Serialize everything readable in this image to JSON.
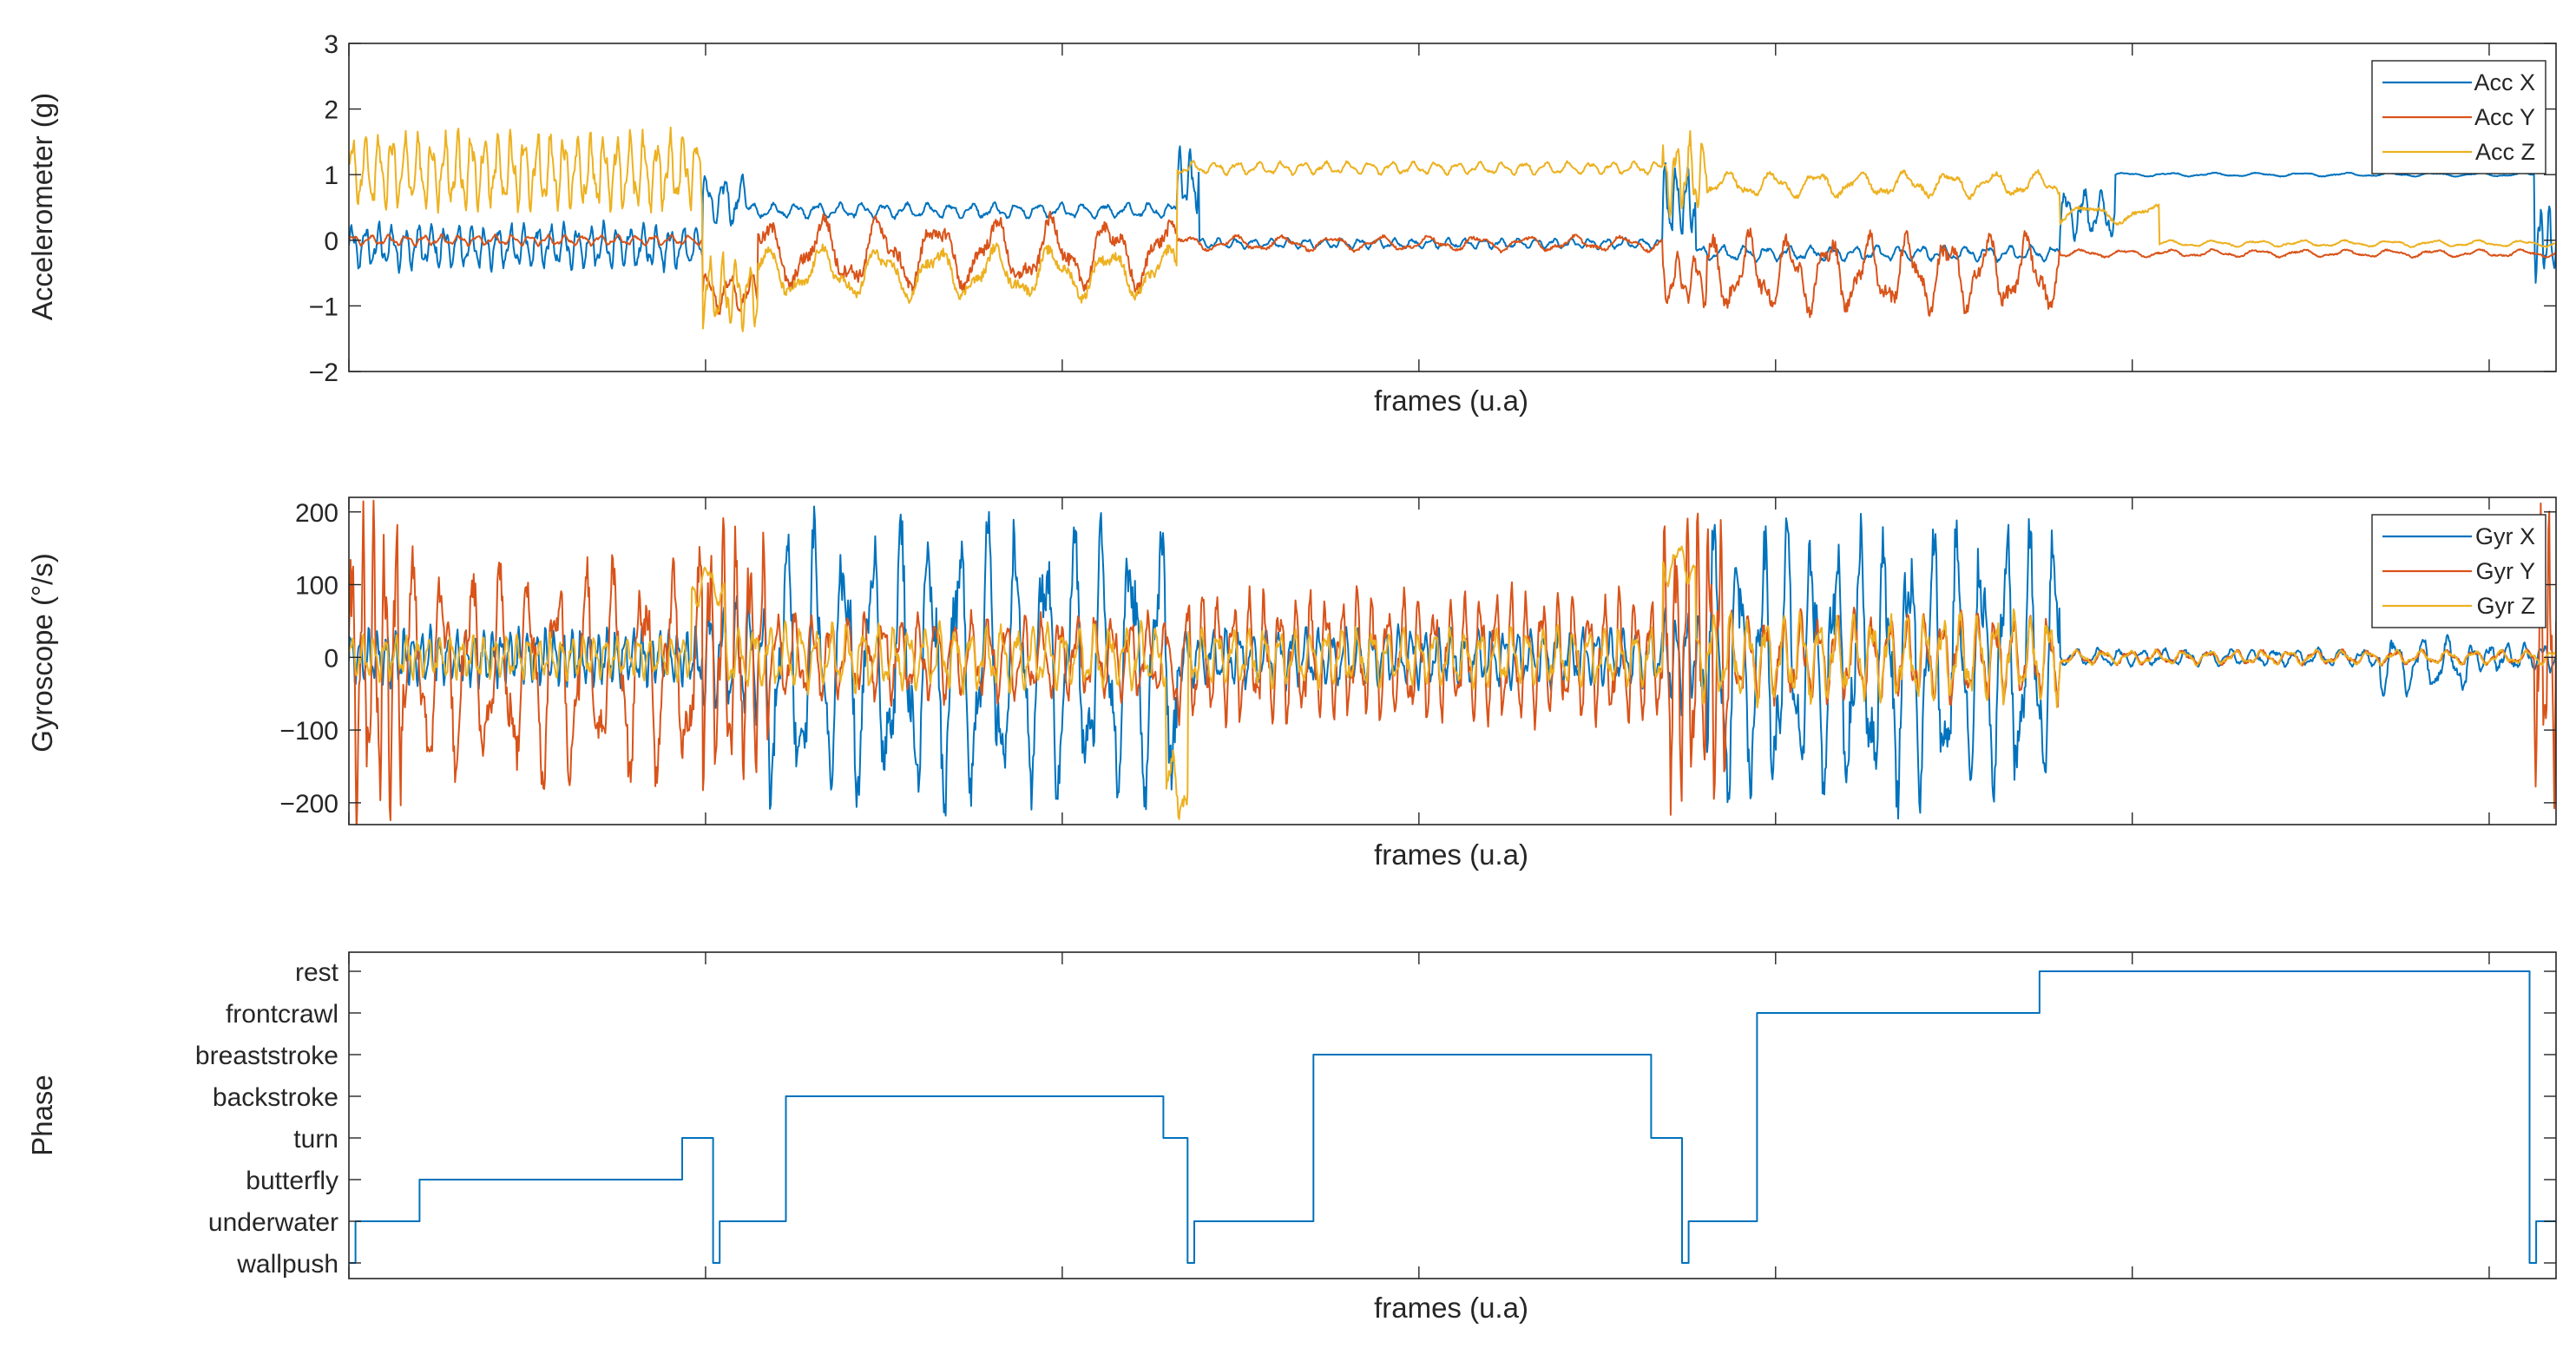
{
  "chart_data": [
    {
      "type": "line",
      "ylabel": "Accelerometer (g)",
      "xlabel": "frames (u.a)",
      "ylim": [
        -2,
        3
      ],
      "yticks": [
        3,
        2,
        1,
        0,
        -1,
        -2
      ],
      "xticks": [
        0,
        0.1616,
        0.3232,
        0.4848,
        0.6464,
        0.808,
        0.9697
      ],
      "legend": "top-right",
      "series": [
        {
          "name": "Acc X",
          "color": "#0072BD",
          "segments": [
            {
              "x0": 0.0,
              "x1": 0.16,
              "mean": -0.1,
              "amp": 0.35,
              "period": 0.006
            },
            {
              "x0": 0.16,
              "x1": 0.18,
              "mean": 0.6,
              "amp": 0.4,
              "period": 0.008
            },
            {
              "x0": 0.18,
              "x1": 0.375,
              "mean": 0.45,
              "amp": 0.12,
              "period": 0.01
            },
            {
              "x0": 0.375,
              "x1": 0.385,
              "mean": 0.9,
              "amp": 0.5,
              "period": 0.005
            },
            {
              "x0": 0.385,
              "x1": 0.595,
              "mean": -0.05,
              "amp": 0.08,
              "period": 0.008
            },
            {
              "x0": 0.595,
              "x1": 0.61,
              "mean": 0.6,
              "amp": 0.6,
              "period": 0.005
            },
            {
              "x0": 0.61,
              "x1": 0.775,
              "mean": -0.2,
              "amp": 0.12,
              "period": 0.01
            },
            {
              "x0": 0.775,
              "x1": 0.8,
              "mean": 0.4,
              "amp": 0.4,
              "period": 0.008
            },
            {
              "x0": 0.8,
              "x1": 0.99,
              "mean": 1.0,
              "amp": 0.03,
              "period": 0.02
            },
            {
              "x0": 0.99,
              "x1": 1.0,
              "mean": 0.0,
              "amp": 0.6,
              "period": 0.004
            }
          ]
        },
        {
          "name": "Acc Y",
          "color": "#D95319",
          "segments": [
            {
              "x0": 0.0,
              "x1": 0.16,
              "mean": 0.0,
              "amp": 0.08,
              "period": 0.008
            },
            {
              "x0": 0.16,
              "x1": 0.185,
              "mean": -0.8,
              "amp": 0.3,
              "period": 0.01
            },
            {
              "x0": 0.185,
              "x1": 0.375,
              "mean": -0.2,
              "amp": 0.55,
              "period": 0.026
            },
            {
              "x0": 0.375,
              "x1": 0.595,
              "mean": -0.05,
              "amp": 0.12,
              "period": 0.022
            },
            {
              "x0": 0.595,
              "x1": 0.615,
              "mean": -0.6,
              "amp": 0.4,
              "period": 0.008
            },
            {
              "x0": 0.615,
              "x1": 0.775,
              "mean": -0.5,
              "amp": 0.6,
              "period": 0.018
            },
            {
              "x0": 0.775,
              "x1": 1.0,
              "mean": -0.2,
              "amp": 0.06,
              "period": 0.02
            }
          ]
        },
        {
          "name": "Acc Z",
          "color": "#EDB120",
          "segments": [
            {
              "x0": 0.0,
              "x1": 0.16,
              "mean": 1.05,
              "amp": 0.6,
              "period": 0.006
            },
            {
              "x0": 0.16,
              "x1": 0.185,
              "mean": -0.8,
              "amp": 0.55,
              "period": 0.006
            },
            {
              "x0": 0.185,
              "x1": 0.375,
              "mean": -0.5,
              "amp": 0.4,
              "period": 0.026
            },
            {
              "x0": 0.375,
              "x1": 0.595,
              "mean": 1.1,
              "amp": 0.1,
              "period": 0.01
            },
            {
              "x0": 0.595,
              "x1": 0.615,
              "mean": 1.0,
              "amp": 0.6,
              "period": 0.006
            },
            {
              "x0": 0.615,
              "x1": 0.775,
              "mean": 0.85,
              "amp": 0.2,
              "period": 0.02
            },
            {
              "x0": 0.775,
              "x1": 0.82,
              "mean": 0.4,
              "amp": 0.15,
              "period": 0.03
            },
            {
              "x0": 0.82,
              "x1": 1.0,
              "mean": -0.05,
              "amp": 0.05,
              "period": 0.02
            }
          ]
        }
      ]
    },
    {
      "type": "line",
      "ylabel": "Gyroscope (°/s)",
      "xlabel": "frames (u.a)",
      "ylim": [
        -230,
        220
      ],
      "yticks": [
        200,
        100,
        0,
        -100,
        -200
      ],
      "xticks": [
        0,
        0.1616,
        0.3232,
        0.4848,
        0.6464,
        0.808,
        0.9697
      ],
      "legend": "top-right",
      "series": [
        {
          "name": "Gyr X",
          "color": "#0072BD",
          "segments": [
            {
              "x0": 0.0,
              "x1": 0.16,
              "mean": 0,
              "amp": 40,
              "period": 0.004
            },
            {
              "x0": 0.16,
              "x1": 0.19,
              "mean": 0,
              "amp": 80,
              "period": 0.006
            },
            {
              "x0": 0.19,
              "x1": 0.375,
              "mean": -10,
              "amp": 190,
              "period": 0.013
            },
            {
              "x0": 0.375,
              "x1": 0.595,
              "mean": 0,
              "amp": 40,
              "period": 0.006
            },
            {
              "x0": 0.595,
              "x1": 0.615,
              "mean": 0,
              "amp": 70,
              "period": 0.005
            },
            {
              "x0": 0.615,
              "x1": 0.775,
              "mean": -10,
              "amp": 190,
              "period": 0.011
            },
            {
              "x0": 0.775,
              "x1": 0.92,
              "mean": 0,
              "amp": 12,
              "period": 0.01
            },
            {
              "x0": 0.92,
              "x1": 0.96,
              "mean": -10,
              "amp": 40,
              "period": 0.012
            },
            {
              "x0": 0.96,
              "x1": 1.0,
              "mean": 0,
              "amp": 20,
              "period": 0.008
            }
          ]
        },
        {
          "name": "Gyr Y",
          "color": "#D95319",
          "segments": [
            {
              "x0": 0.0,
              "x1": 0.025,
              "mean": -10,
              "amp": 210,
              "period": 0.005
            },
            {
              "x0": 0.025,
              "x1": 0.16,
              "mean": -20,
              "amp": 150,
              "period": 0.013
            },
            {
              "x0": 0.16,
              "x1": 0.19,
              "mean": 0,
              "amp": 170,
              "period": 0.006
            },
            {
              "x0": 0.19,
              "x1": 0.375,
              "mean": 0,
              "amp": 60,
              "period": 0.008
            },
            {
              "x0": 0.375,
              "x1": 0.595,
              "mean": 0,
              "amp": 90,
              "period": 0.007
            },
            {
              "x0": 0.595,
              "x1": 0.625,
              "mean": 0,
              "amp": 200,
              "period": 0.005
            },
            {
              "x0": 0.625,
              "x1": 0.775,
              "mean": 0,
              "amp": 60,
              "period": 0.008
            },
            {
              "x0": 0.775,
              "x1": 0.99,
              "mean": 0,
              "amp": 10,
              "period": 0.012
            },
            {
              "x0": 0.99,
              "x1": 1.0,
              "mean": 0,
              "amp": 190,
              "period": 0.004
            }
          ]
        },
        {
          "name": "Gyr Z",
          "color": "#EDB120",
          "segments": [
            {
              "x0": 0.0,
              "x1": 0.155,
              "mean": 0,
              "amp": 30,
              "period": 0.005
            },
            {
              "x0": 0.155,
              "x1": 0.17,
              "mean": 100,
              "amp": 30,
              "period": 0.01
            },
            {
              "x0": 0.17,
              "x1": 0.37,
              "mean": 0,
              "amp": 45,
              "period": 0.007
            },
            {
              "x0": 0.37,
              "x1": 0.38,
              "mean": -180,
              "amp": 50,
              "period": 0.01
            },
            {
              "x0": 0.38,
              "x1": 0.595,
              "mean": 0,
              "amp": 40,
              "period": 0.007
            },
            {
              "x0": 0.595,
              "x1": 0.61,
              "mean": 130,
              "amp": 30,
              "period": 0.01
            },
            {
              "x0": 0.61,
              "x1": 0.775,
              "mean": 0,
              "amp": 60,
              "period": 0.008
            },
            {
              "x0": 0.775,
              "x1": 1.0,
              "mean": 0,
              "amp": 10,
              "period": 0.012
            }
          ]
        }
      ]
    },
    {
      "type": "line",
      "ylabel": "Phase",
      "xlabel": "frames (u.a)",
      "categories": [
        "wallpush",
        "underwater",
        "butterfly",
        "turn",
        "backstroke",
        "breaststroke",
        "frontcrawl",
        "rest"
      ],
      "xticks": [
        0,
        0.1616,
        0.3232,
        0.4848,
        0.6464,
        0.808,
        0.9697
      ],
      "series": [
        {
          "name": "Phase",
          "color": "#0072BD",
          "steps": [
            {
              "x": 0.0,
              "y": 0
            },
            {
              "x": 0.003,
              "y": 1
            },
            {
              "x": 0.032,
              "y": 2
            },
            {
              "x": 0.151,
              "y": 3
            },
            {
              "x": 0.165,
              "y": 0
            },
            {
              "x": 0.168,
              "y": 1
            },
            {
              "x": 0.198,
              "y": 4
            },
            {
              "x": 0.369,
              "y": 3
            },
            {
              "x": 0.38,
              "y": 0
            },
            {
              "x": 0.383,
              "y": 1
            },
            {
              "x": 0.437,
              "y": 5
            },
            {
              "x": 0.59,
              "y": 3
            },
            {
              "x": 0.604,
              "y": 0
            },
            {
              "x": 0.607,
              "y": 1
            },
            {
              "x": 0.638,
              "y": 6
            },
            {
              "x": 0.766,
              "y": 7
            },
            {
              "x": 0.988,
              "y": 0
            },
            {
              "x": 0.991,
              "y": 1
            },
            {
              "x": 1.0,
              "y": 1
            }
          ]
        }
      ]
    }
  ]
}
